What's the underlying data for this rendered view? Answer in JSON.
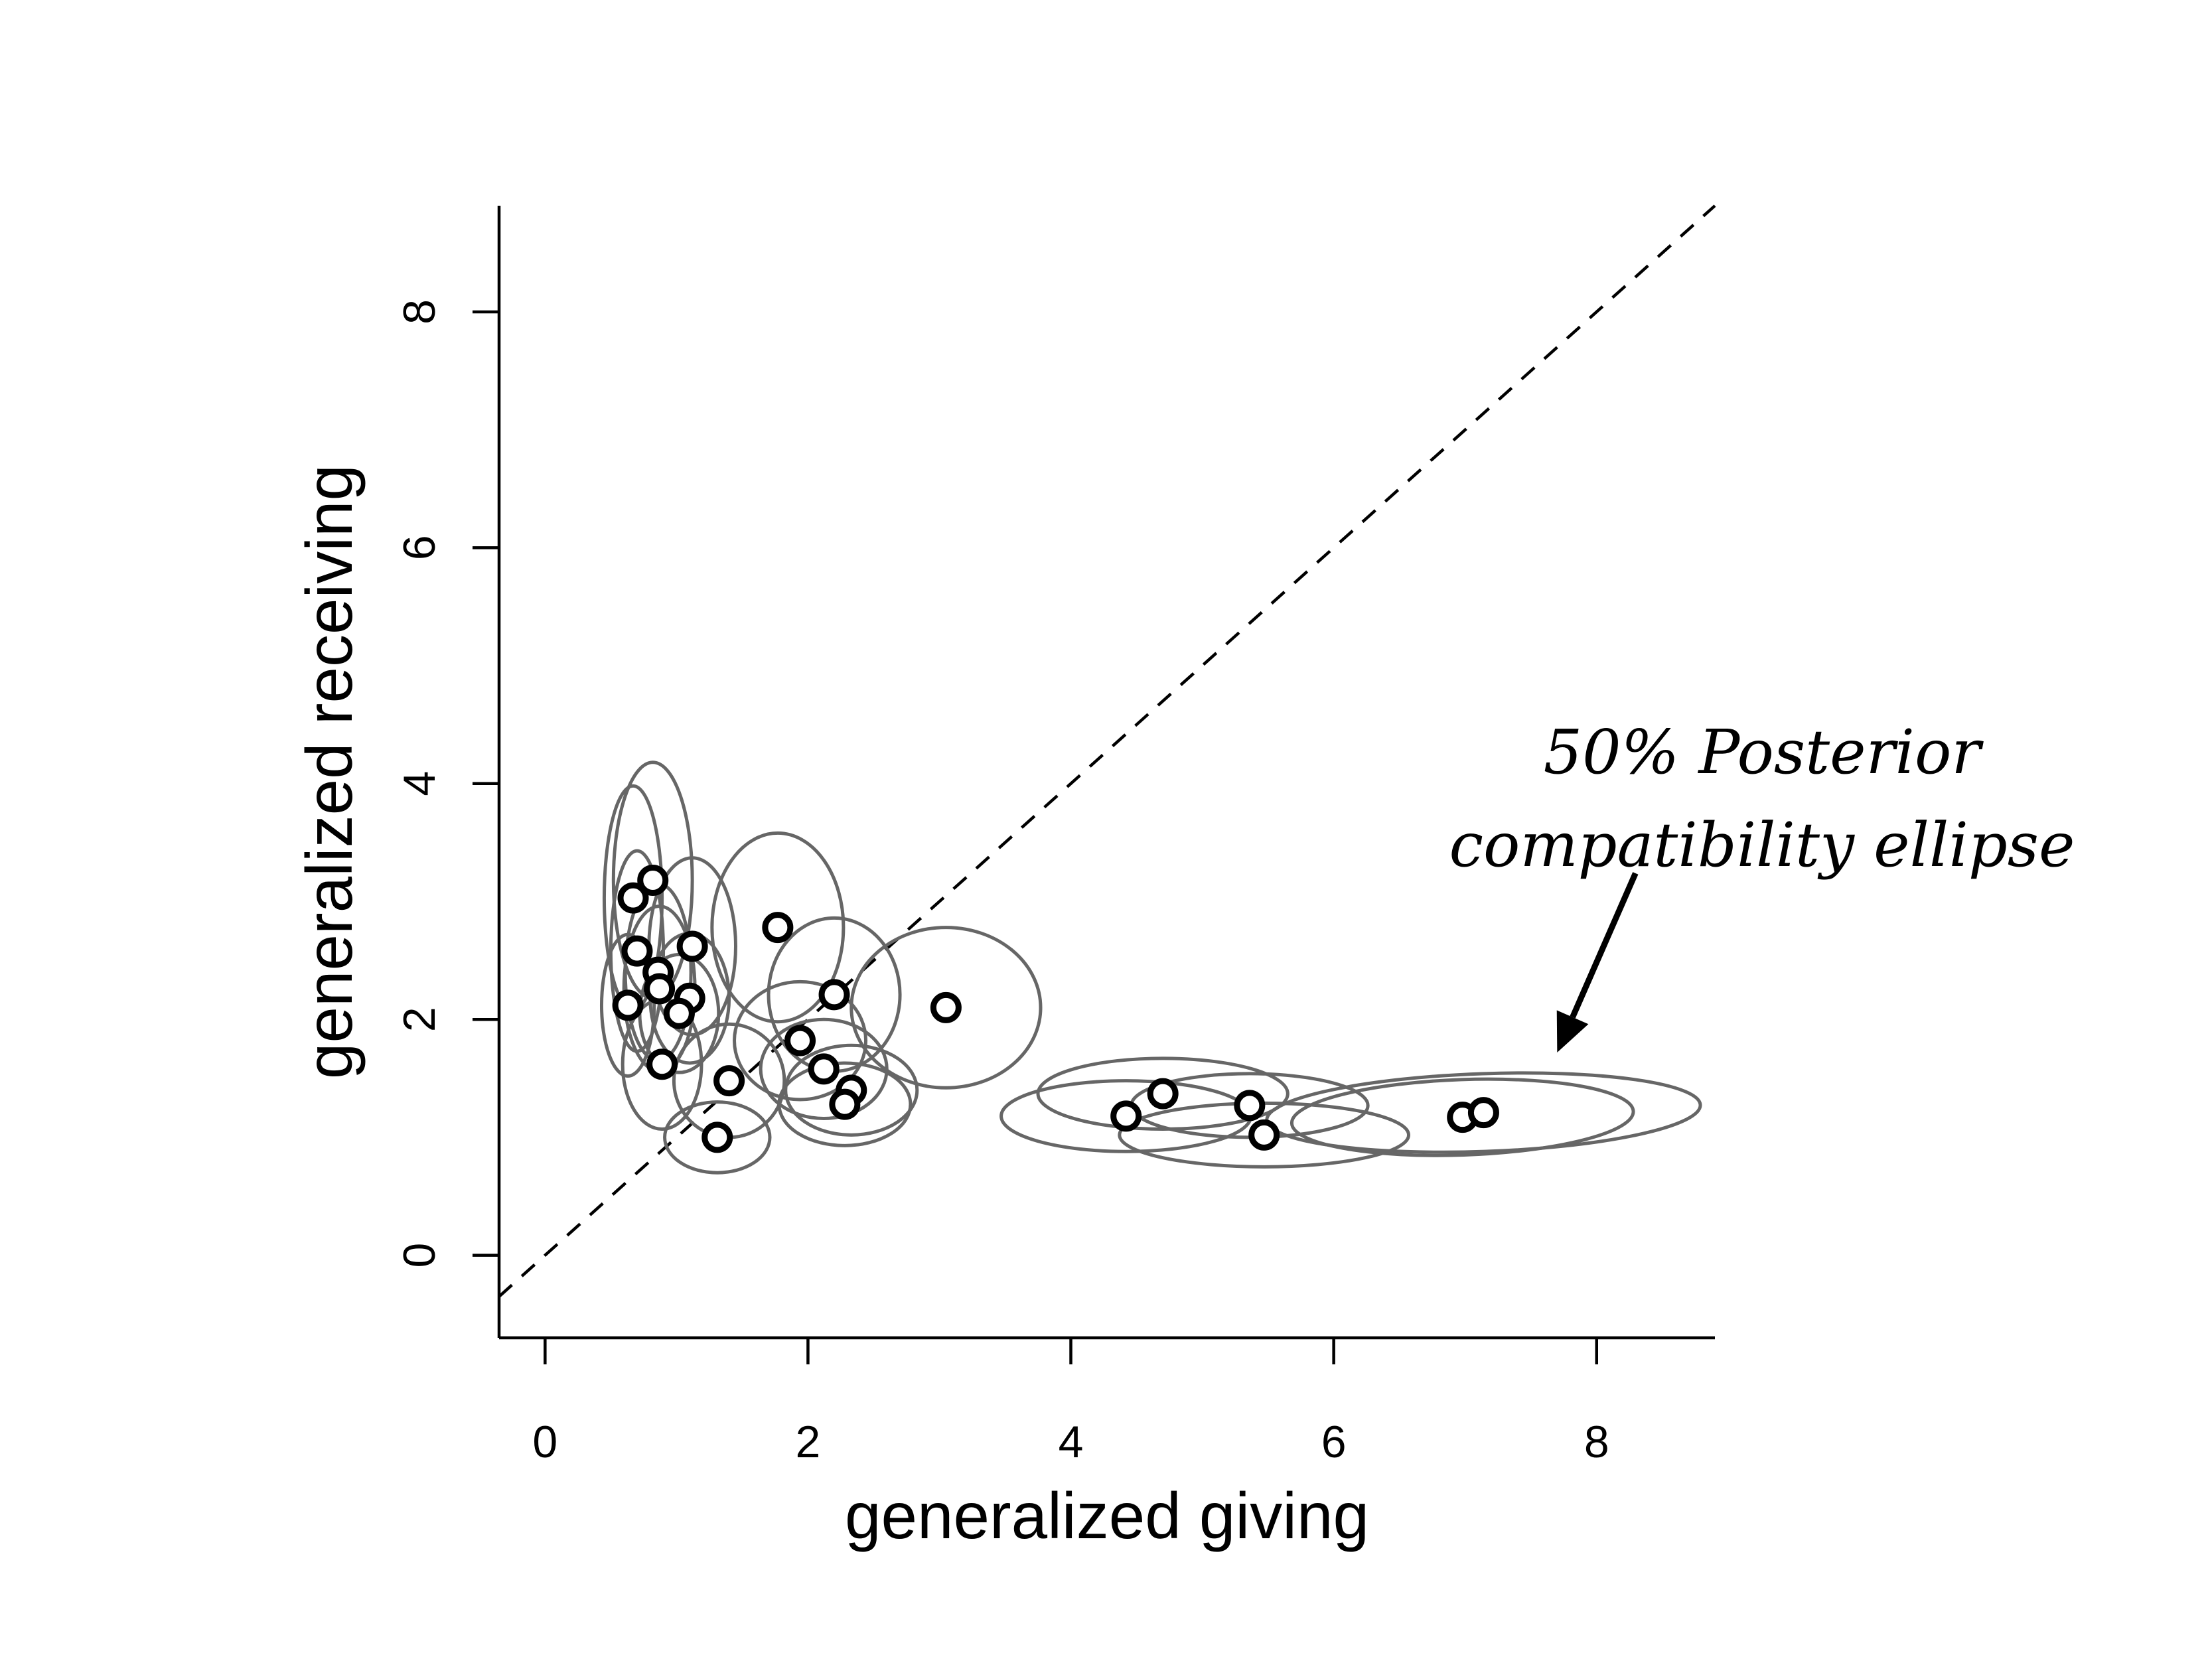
{
  "chart_data": {
    "type": "scatter",
    "xlabel": "generalized giving",
    "ylabel": "generalized receiving",
    "xlim": [
      -0.35,
      8.9
    ],
    "ylim": [
      -0.7,
      8.9
    ],
    "x_ticks": [
      0,
      2,
      4,
      6,
      8
    ],
    "y_ticks": [
      0,
      2,
      4,
      6,
      8
    ],
    "x_tick_labels": [
      "0",
      "2",
      "4",
      "6",
      "8"
    ],
    "y_tick_labels": [
      "0",
      "2",
      "4",
      "6",
      "8"
    ],
    "grid": false,
    "reference_line": {
      "style": "dashed",
      "slope": 1,
      "intercept": 0
    },
    "annotation": {
      "lines": [
        "50% Posterior",
        "compatibility ellipse"
      ],
      "arrow_target": {
        "x": 7.7,
        "y": 1.72
      }
    },
    "points": [
      {
        "x": 0.67,
        "y": 3.03,
        "rx": 0.22,
        "ry": 0.95,
        "angle": 0
      },
      {
        "x": 0.82,
        "y": 3.18,
        "rx": 0.3,
        "ry": 1.0,
        "angle": 0
      },
      {
        "x": 0.7,
        "y": 2.58,
        "rx": 0.2,
        "ry": 0.85,
        "angle": 0
      },
      {
        "x": 0.86,
        "y": 2.4,
        "rx": 0.25,
        "ry": 0.75,
        "angle": 0
      },
      {
        "x": 0.87,
        "y": 2.26,
        "rx": 0.27,
        "ry": 0.7,
        "angle": 0
      },
      {
        "x": 0.63,
        "y": 2.12,
        "rx": 0.2,
        "ry": 0.6,
        "angle": 0
      },
      {
        "x": 1.12,
        "y": 2.62,
        "rx": 0.33,
        "ry": 0.75,
        "angle": 0
      },
      {
        "x": 1.1,
        "y": 2.18,
        "rx": 0.3,
        "ry": 0.55,
        "angle": 0
      },
      {
        "x": 1.02,
        "y": 2.05,
        "rx": 0.3,
        "ry": 0.5,
        "angle": 0
      },
      {
        "x": 0.89,
        "y": 1.62,
        "rx": 0.3,
        "ry": 0.55,
        "angle": 0
      },
      {
        "x": 1.77,
        "y": 2.78,
        "rx": 0.5,
        "ry": 0.8,
        "angle": 0
      },
      {
        "x": 2.2,
        "y": 2.21,
        "rx": 0.5,
        "ry": 0.65,
        "angle": 0
      },
      {
        "x": 1.94,
        "y": 1.82,
        "rx": 0.5,
        "ry": 0.5,
        "angle": 0
      },
      {
        "x": 2.12,
        "y": 1.58,
        "rx": 0.48,
        "ry": 0.42,
        "angle": 0
      },
      {
        "x": 2.33,
        "y": 1.4,
        "rx": 0.5,
        "ry": 0.38,
        "angle": 0
      },
      {
        "x": 2.28,
        "y": 1.28,
        "rx": 0.5,
        "ry": 0.35,
        "angle": 0
      },
      {
        "x": 1.4,
        "y": 1.48,
        "rx": 0.42,
        "ry": 0.48,
        "angle": 0
      },
      {
        "x": 1.31,
        "y": 1.0,
        "rx": 0.4,
        "ry": 0.3,
        "angle": 0
      },
      {
        "x": 3.05,
        "y": 2.1,
        "rx": 0.72,
        "ry": 0.68,
        "angle": 0
      },
      {
        "x": 4.42,
        "y": 1.18,
        "rx": 0.95,
        "ry": 0.3,
        "angle": 0
      },
      {
        "x": 4.7,
        "y": 1.37,
        "rx": 0.95,
        "ry": 0.3,
        "angle": 0
      },
      {
        "x": 5.36,
        "y": 1.27,
        "rx": 0.9,
        "ry": 0.27,
        "angle": 0
      },
      {
        "x": 5.47,
        "y": 1.02,
        "rx": 1.1,
        "ry": 0.27,
        "angle": 0
      },
      {
        "x": 6.98,
        "y": 1.17,
        "rx": 1.3,
        "ry": 0.32,
        "angle": -2
      },
      {
        "x": 7.14,
        "y": 1.21,
        "rx": 1.65,
        "ry": 0.33,
        "angle": -2
      }
    ]
  }
}
